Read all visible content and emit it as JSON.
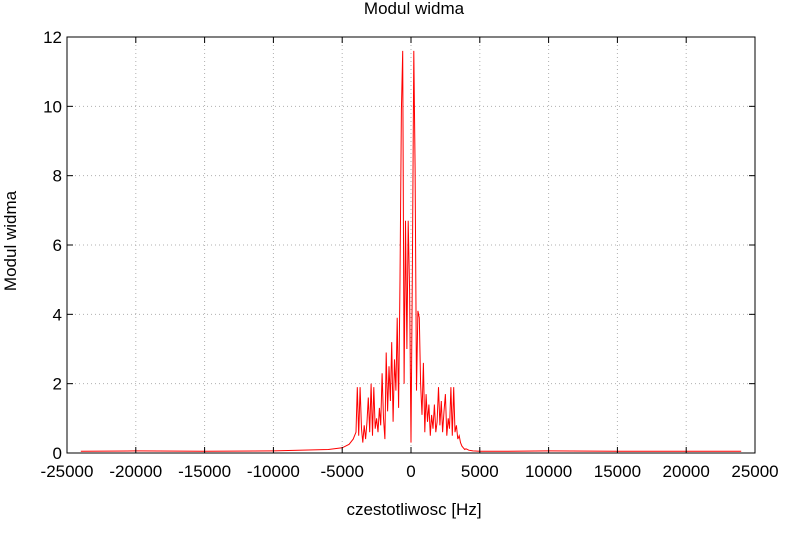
{
  "chart_data": {
    "type": "line",
    "title": "Modul widma",
    "xlabel": "czestotliwosc [Hz]",
    "ylabel": "Modul widma",
    "xlim": [
      -25000,
      25000
    ],
    "ylim": [
      0,
      12
    ],
    "x_ticks": [
      -25000,
      -20000,
      -15000,
      -10000,
      -5000,
      0,
      5000,
      10000,
      15000,
      20000,
      25000
    ],
    "y_ticks": [
      0,
      2,
      4,
      6,
      8,
      10,
      12
    ],
    "x_tick_labels": [
      "-25000",
      "-20000",
      "-15000",
      "-10000",
      "-5000",
      "0",
      "5000",
      "10000",
      "15000",
      "20000",
      "25000"
    ],
    "y_tick_labels": [
      "0",
      "2",
      "4",
      "6",
      "8",
      "10",
      "12"
    ],
    "grid": true,
    "line_color": "#ff0000",
    "series": [
      {
        "x": [
          -24000,
          -20000,
          -15000,
          -10000,
          -6000,
          -5000,
          -4500,
          -4200,
          -4000,
          -3900,
          -3800,
          -3700,
          -3600,
          -3500,
          -3400,
          -3300,
          -3200,
          -3100,
          -3000,
          -2900,
          -2800,
          -2700,
          -2600,
          -2500,
          -2400,
          -2300,
          -2200,
          -2100,
          -2000,
          -1900,
          -1800,
          -1700,
          -1600,
          -1500,
          -1400,
          -1300,
          -1200,
          -1100,
          -1000,
          -900,
          -800,
          -700,
          -600,
          -500,
          -400,
          -300,
          -200,
          -100,
          0,
          100,
          200,
          300,
          400,
          500,
          600,
          700,
          800,
          900,
          1000,
          1100,
          1200,
          1300,
          1400,
          1500,
          1600,
          1700,
          1800,
          1900,
          2000,
          2100,
          2200,
          2300,
          2400,
          2500,
          2600,
          2700,
          2800,
          2900,
          3000,
          3100,
          3200,
          3300,
          3400,
          3500,
          3600,
          3700,
          3800,
          3900,
          4000,
          4200,
          4500,
          5000,
          6000,
          10000,
          15000,
          20000,
          24000
        ],
        "values": [
          0.05,
          0.06,
          0.05,
          0.06,
          0.1,
          0.15,
          0.25,
          0.4,
          0.6,
          1.9,
          0.5,
          1.9,
          0.7,
          0.3,
          0.8,
          0.4,
          0.9,
          1.6,
          0.6,
          2.0,
          0.5,
          1.9,
          0.7,
          1.0,
          0.6,
          1.3,
          0.8,
          2.3,
          1.0,
          0.4,
          2.9,
          1.2,
          2.5,
          1.5,
          3.2,
          0.9,
          2.7,
          1.8,
          3.9,
          1.3,
          5.0,
          9.9,
          11.6,
          2.0,
          6.7,
          3.0,
          6.7,
          4.7,
          0.3,
          5.4,
          11.6,
          8.2,
          1.8,
          4.1,
          3.9,
          2.0,
          1.1,
          2.6,
          0.6,
          1.7,
          0.9,
          1.4,
          0.5,
          1.1,
          0.7,
          1.4,
          0.6,
          0.9,
          1.9,
          0.8,
          1.5,
          0.6,
          1.2,
          1.7,
          0.5,
          1.0,
          0.7,
          1.9,
          0.5,
          1.9,
          0.6,
          0.8,
          0.4,
          0.5,
          0.3,
          0.2,
          0.15,
          0.1,
          0.12,
          0.08,
          0.06,
          0.05,
          0.05,
          0.06,
          0.05,
          0.05,
          0.05
        ]
      }
    ]
  }
}
